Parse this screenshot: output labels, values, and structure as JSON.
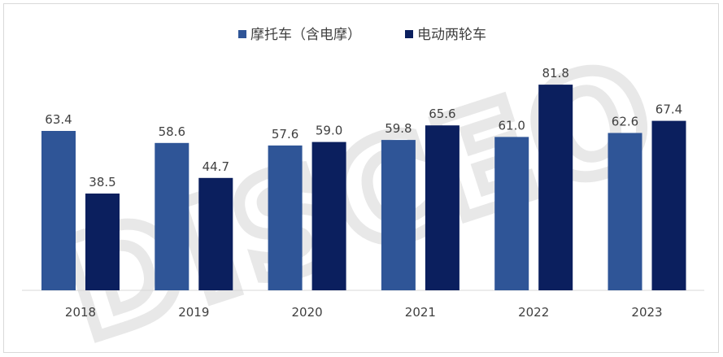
{
  "chart_data": {
    "type": "bar",
    "categories": [
      "2018",
      "2019",
      "2020",
      "2021",
      "2022",
      "2023"
    ],
    "series": [
      {
        "name": "摩托车（含电摩）",
        "color": "#2f5597",
        "values": [
          63.4,
          58.6,
          57.6,
          59.8,
          61.0,
          62.6
        ],
        "labels": [
          "63.4",
          "58.6",
          "57.6",
          "59.8",
          "61.0",
          "62.6"
        ]
      },
      {
        "name": "电动两轮车",
        "color": "#0b1f5e",
        "values": [
          38.5,
          44.7,
          59.0,
          65.6,
          81.8,
          67.4
        ],
        "labels": [
          "38.5",
          "44.7",
          "59.0",
          "65.6",
          "81.8",
          "67.4"
        ]
      }
    ],
    "ylim": [
      0,
      90
    ],
    "grid": false,
    "legend_position": "top-center",
    "title": "",
    "xlabel": "",
    "ylabel": ""
  },
  "watermark": {
    "text": "DISCEO",
    "color": "#d9d9d9"
  }
}
